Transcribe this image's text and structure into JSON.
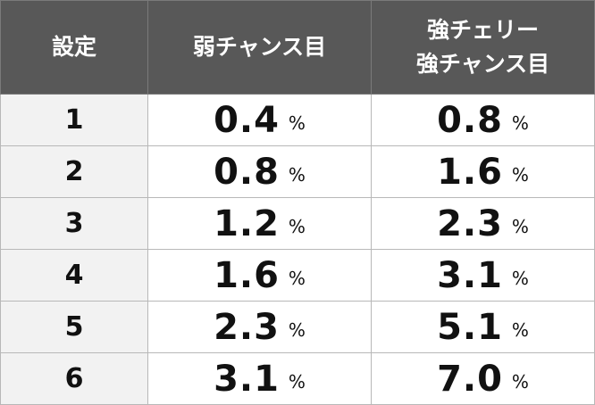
{
  "table": {
    "headers": {
      "setting": "設定",
      "weak_chance": "弱チャンス目",
      "strong_cherry_line1": "強チェリー",
      "strong_cherry_line2": "強チャンス目"
    },
    "unit": "%",
    "rows": [
      {
        "setting": "1",
        "weak_chance": "0.4",
        "strong": "0.8"
      },
      {
        "setting": "2",
        "weak_chance": "0.8",
        "strong": "1.6"
      },
      {
        "setting": "3",
        "weak_chance": "1.2",
        "strong": "2.3"
      },
      {
        "setting": "4",
        "weak_chance": "1.6",
        "strong": "3.1"
      },
      {
        "setting": "5",
        "weak_chance": "2.3",
        "strong": "5.1"
      },
      {
        "setting": "6",
        "weak_chance": "3.1",
        "strong": "7.0"
      }
    ]
  }
}
